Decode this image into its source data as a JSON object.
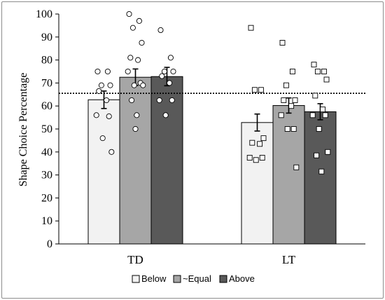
{
  "chart_data": {
    "type": "bar",
    "title": "",
    "xlabel": "",
    "ylabel": "Shape Choice Percentage",
    "ylim": [
      0,
      100
    ],
    "yticks": [
      0,
      10,
      20,
      30,
      40,
      50,
      60,
      70,
      80,
      90,
      100
    ],
    "categories": [
      "TD",
      "LT"
    ],
    "reference_line": 65.5,
    "legend_position": "bottom",
    "grid": false,
    "series": [
      {
        "name": "Below",
        "color": "#f2f2f2",
        "values": [
          62.7,
          52.8
        ],
        "errors": [
          3.8,
          3.7
        ],
        "points": [
          [
            75,
            75,
            69,
            69,
            66.5,
            62.5,
            56,
            55.5,
            46,
            40
          ],
          [
            94,
            67,
            67,
            46,
            44,
            43.5,
            37.5,
            37.5,
            36.5
          ]
        ]
      },
      {
        "name": "~Equal",
        "color": "#a6a6a6",
        "values": [
          72.5,
          60.2
        ],
        "errors": [
          3.6,
          3.3
        ],
        "points": [
          [
            100,
            97,
            94,
            87.5,
            81,
            80,
            75,
            70,
            69,
            69,
            62.5,
            56,
            50
          ],
          [
            87.5,
            75,
            69,
            62.5,
            62.5,
            60,
            56,
            50,
            50,
            33.3
          ]
        ]
      },
      {
        "name": "Above",
        "color": "#595959",
        "values": [
          72.8,
          57.5
        ],
        "errors": [
          4.0,
          3.5
        ],
        "points": [
          [
            93,
            81,
            75,
            75,
            73,
            70,
            62.5,
            62.5,
            56
          ],
          [
            78,
            75,
            75,
            71.5,
            64.5,
            58.5,
            56,
            56,
            50,
            40,
            38.5,
            31.5
          ]
        ]
      }
    ]
  }
}
